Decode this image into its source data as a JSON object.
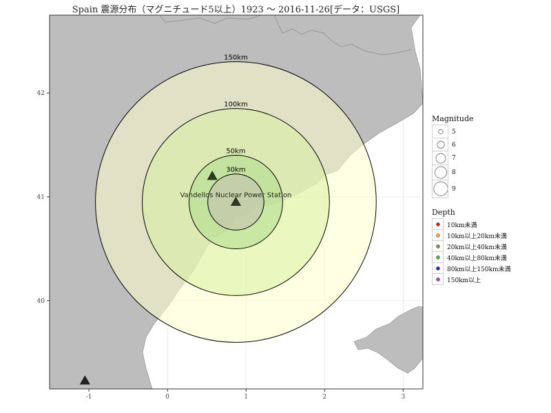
{
  "title": "Spain 震源分布（マグニチュード5以上）1923 ～ 2016-11-26[データ：USGS]",
  "map_data": {
    "x_range": [
      -1.5,
      3.25
    ],
    "y_range": [
      39.15,
      42.75
    ],
    "x_ticks": [
      -1,
      0,
      1,
      2,
      3
    ],
    "y_ticks": [
      40,
      41,
      42
    ],
    "land_color": "#bdbdbd",
    "sea_color": "#ffffff",
    "grid_color": "#ebebeb",
    "center": {
      "name": "Vandellos Nuclear Power Station",
      "lon": 0.87,
      "lat": 40.95
    },
    "rings": [
      {
        "label": "150km",
        "km": 150,
        "fill": "#ffffcc"
      },
      {
        "label": "100km",
        "km": 100,
        "fill": "#d9f0a3"
      },
      {
        "label": "50km",
        "km": 50,
        "fill": "#addd8e"
      },
      {
        "label": "30km",
        "km": 30,
        "fill": "#c2c0b0"
      }
    ],
    "markers": [
      {
        "name": "power-station-marker",
        "lon": 0.87,
        "lat": 40.95,
        "icon": "triangle"
      },
      {
        "name": "plant-marker-north",
        "lon": 0.57,
        "lat": 41.2,
        "icon": "triangle"
      },
      {
        "name": "plant-marker-southwest",
        "lon": -1.05,
        "lat": 39.23,
        "icon": "triangle"
      }
    ]
  },
  "legend": {
    "magnitude": {
      "title": "Magnitude",
      "items": [
        {
          "label": "5",
          "size": 1
        },
        {
          "label": "6",
          "size": 2
        },
        {
          "label": "7",
          "size": 3
        },
        {
          "label": "8",
          "size": 4
        },
        {
          "label": "9",
          "size": 5
        }
      ]
    },
    "depth": {
      "title": "Depth",
      "items": [
        {
          "label": "10km未満",
          "color": "#e41a1c"
        },
        {
          "label": "10km以上20km未満",
          "color": "#ff9933"
        },
        {
          "label": "20km以上40km未満",
          "color": "#8c8c50"
        },
        {
          "label": "40km以上80km未満",
          "color": "#4daf4a"
        },
        {
          "label": "80km以上150km未満",
          "color": "#2828b4"
        },
        {
          "label": "150km以上",
          "color": "#984ea3"
        }
      ]
    }
  }
}
